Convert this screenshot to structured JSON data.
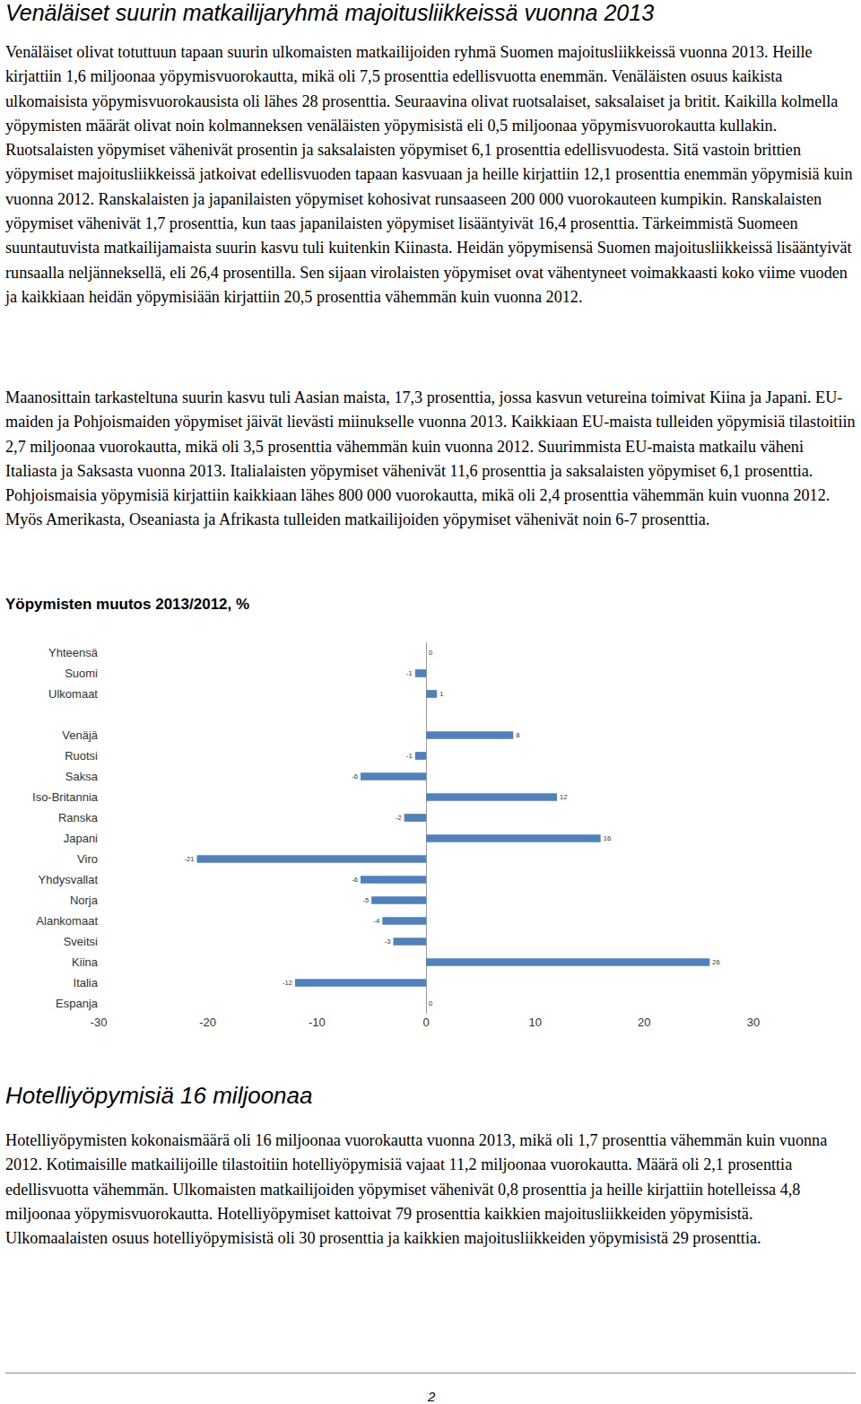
{
  "document": {
    "title": "Venäläiset suurin matkailijaryhmä majoitusliikkeissä vuonna 2013",
    "paragraphs": [
      "Venäläiset olivat totuttuun tapaan suurin ulkomaisten matkailijoiden ryhmä Suomen majoitusliikkeissä vuonna 2013. Heille kirjattiin 1,6 miljoonaa yöpymisvuorokautta, mikä oli 7,5 prosenttia edellisvuotta enemmän. Venäläisten osuus kaikista ulkomaisista yöpymisvuorokausista oli lähes 28 prosenttia. Seuraavina olivat ruotsalaiset, saksalaiset ja britit. Kaikilla kolmella yöpymisten määrät olivat noin kolmanneksen venäläisten yöpymisistä eli 0,5 miljoonaa yöpymisvuorokautta kullakin. Ruotsalaisten yöpymiset vähenivät prosentin ja saksalaisten yöpymiset 6,1 prosenttia edellisvuodesta. Sitä vastoin brittien yöpymiset majoitusliikkeissä jatkoivat edellisvuoden tapaan kasvuaan ja heille kirjattiin 12,1 prosenttia enemmän yöpymisiä kuin vuonna 2012. Ranskalaisten ja japanilaisten yöpymiset kohosivat runsaaseen 200 000 vuorokauteen kumpikin. Ranskalaisten yöpymiset vähenivät 1,7 prosenttia, kun taas japanilaisten yöpymiset lisääntyivät 16,4 prosenttia. Tärkeimmistä Suomeen suuntautuvista matkailijamaista suurin kasvu tuli kuitenkin Kiinasta. Heidän yöpymisensä Suomen majoitusliikkeissä lisääntyivät runsaalla neljänneksellä, eli 26,4 prosentilla. Sen sijaan virolaisten yöpymiset ovat vähentyneet voimakkaasti koko viime vuoden ja kaikkiaan heidän yöpymisiään kirjattiin 20,5 prosenttia vähemmän kuin vuonna 2012.",
      "Maanosittain tarkasteltuna suurin kasvu tuli Aasian maista, 17,3 prosenttia, jossa kasvun vetureina toimivat Kiina ja Japani. EU-maiden ja Pohjoismaiden yöpymiset jäivät lievästi miinukselle vuonna 2013. Kaikkiaan EU-maista tulleiden yöpymisiä tilastoitiin 2,7 miljoonaa vuorokautta, mikä oli 3,5 prosenttia vähemmän kuin vuonna 2012. Suurimmista EU-maista matkailu väheni Italiasta ja Saksasta vuonna 2013. Italialaisten yöpymiset vähenivät 11,6 prosenttia ja saksalaisten yöpymiset 6,1 prosenttia. Pohjoismaisia yöpymisiä kirjattiin kaikkiaan lähes 800 000 vuorokautta, mikä oli 2,4 prosenttia vähemmän kuin vuonna 2012. Myös Amerikasta, Oseaniasta ja Afrikasta tulleiden matkailijoiden yöpymiset vähenivät noin 6-7 prosenttia."
    ],
    "chart_heading": "Yöpymisten muutos 2013/2012, %",
    "section_heading": "Hotelliyöpymisiä 16 miljoonaa",
    "section_paragraph": "Hotelliyöpymisten kokonaismäärä oli 16 miljoonaa vuorokautta vuonna 2013, mikä oli 1,7 prosenttia vähemmän kuin vuonna 2012. Kotimaisille matkailijoille tilastoitiin hotelliyöpymisiä vajaat 11,2 miljoonaa vuorokautta. Määrä oli 2,1 prosenttia edellisvuotta vähemmän. Ulkomaisten matkailijoiden yöpymiset vähenivät 0,8 prosenttia ja heille kirjattiin hotelleissa 4,8 miljoonaa yöpymisvuorokautta. Hotelliyöpymiset kattoivat 79 prosenttia kaikkien majoitusliikkeiden yöpymisistä. Ulkomaalaisten osuus hotelliyöpymisistä oli 30 prosenttia ja kaikkien majoitusliikkeiden yöpymisistä 29 prosenttia.",
    "page_number": "2"
  },
  "chart_data": {
    "type": "bar",
    "orientation": "horizontal",
    "categories": [
      "Yhteensä",
      "Suomi",
      "Ulkomaat",
      null,
      "Venäjä",
      "Ruotsi",
      "Saksa",
      "Iso-Britannia",
      "Ranska",
      "Japani",
      "Viro",
      "Yhdysvallat",
      "Norja",
      "Alankomaat",
      "Sveitsi",
      "Kiina",
      "Italia",
      "Espanja"
    ],
    "values": [
      0,
      -1,
      1,
      null,
      8,
      -1,
      -6,
      12,
      -2,
      16,
      -21,
      -6,
      -5,
      -4,
      -3,
      26,
      -12,
      0
    ],
    "color": "#4f81bd",
    "xlim": [
      -30,
      30
    ],
    "xticks": [
      -30,
      -20,
      -10,
      0,
      10,
      20,
      30
    ],
    "grid": false,
    "data_labels": true
  }
}
